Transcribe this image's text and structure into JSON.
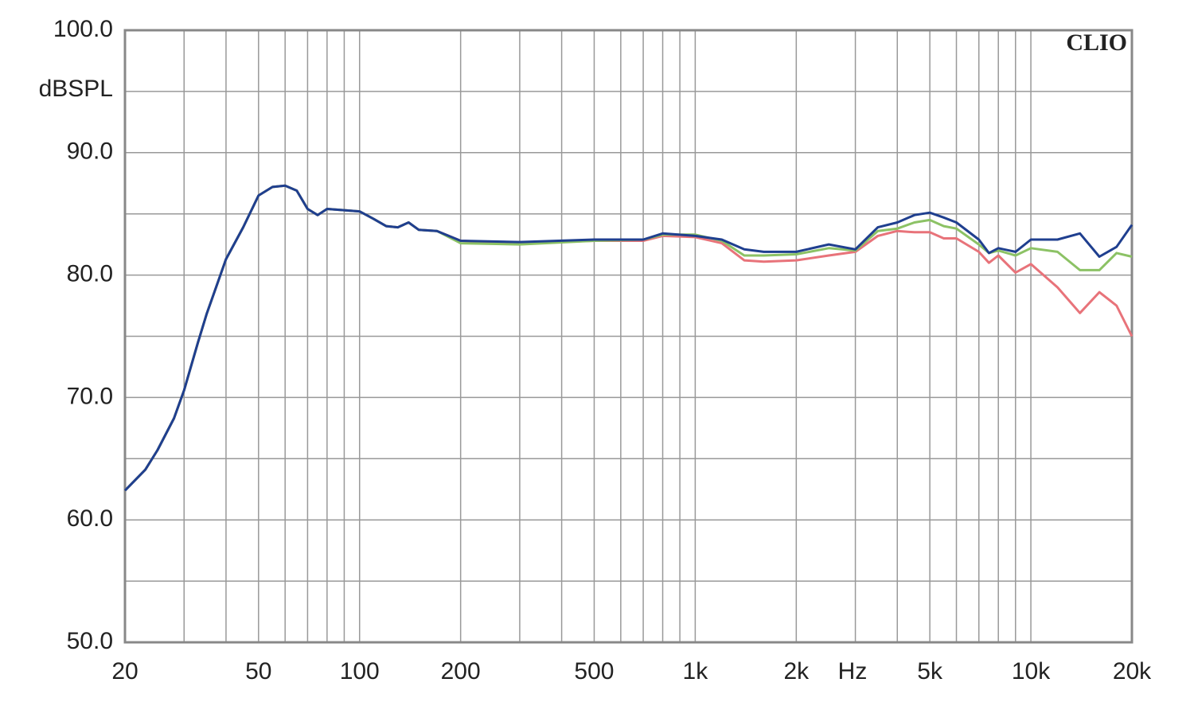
{
  "chart_data": {
    "type": "line",
    "xscale": "log",
    "grid": true,
    "ylabel": "dBSPL",
    "xlabel": "Hz",
    "watermark": "CLIO",
    "xlim": [
      20,
      20000
    ],
    "ylim": [
      50,
      100
    ],
    "xticks": [
      20,
      50,
      100,
      200,
      500,
      {
        "value": 1000,
        "label": "1k"
      },
      {
        "value": 2000,
        "label": "2k"
      },
      {
        "value": 5000,
        "label": "5k"
      },
      {
        "value": 10000,
        "label": "10k"
      },
      {
        "value": 20000,
        "label": "20k"
      }
    ],
    "yticks": [
      {
        "value": 50,
        "label": "50.0"
      },
      {
        "value": 60,
        "label": "60.0"
      },
      {
        "value": 70,
        "label": "70.0"
      },
      {
        "value": 80,
        "label": "80.0"
      },
      {
        "value": 90,
        "label": "90.0"
      },
      {
        "value": 100,
        "label": "100.0"
      }
    ],
    "x_minor_grid": [
      30,
      40,
      60,
      70,
      80,
      90,
      300,
      400,
      600,
      700,
      800,
      900,
      3000,
      4000,
      6000,
      7000,
      8000,
      9000
    ],
    "y_minor_grid": [
      55,
      65,
      75,
      85,
      95
    ],
    "x": [
      20,
      23,
      25,
      28,
      30,
      33,
      35,
      40,
      45,
      50,
      55,
      60,
      65,
      70,
      75,
      80,
      90,
      100,
      110,
      120,
      130,
      140,
      150,
      170,
      200,
      300,
      500,
      700,
      800,
      1000,
      1200,
      1400,
      1600,
      2000,
      2500,
      3000,
      3500,
      4000,
      4500,
      5000,
      5500,
      6000,
      7000,
      7500,
      8000,
      9000,
      10000,
      12000,
      14000,
      16000,
      18000,
      20000
    ],
    "series": [
      {
        "color": "#e8737a",
        "values": [
          62.4,
          64.1,
          65.7,
          68.3,
          70.6,
          74.5,
          76.8,
          81.3,
          83.9,
          86.5,
          87.2,
          87.3,
          86.9,
          85.4,
          84.9,
          85.4,
          85.3,
          85.2,
          84.6,
          84.0,
          83.9,
          84.3,
          83.7,
          83.6,
          82.8,
          82.6,
          82.8,
          82.8,
          83.2,
          83.1,
          82.6,
          81.2,
          81.1,
          81.2,
          81.6,
          81.9,
          83.2,
          83.6,
          83.5,
          83.5,
          83.0,
          83.0,
          81.9,
          81.0,
          81.6,
          80.2,
          80.9,
          79.0,
          76.9,
          78.6,
          77.5,
          75.0
        ]
      },
      {
        "color": "#8cc265",
        "values": [
          62.4,
          64.1,
          65.7,
          68.3,
          70.6,
          74.5,
          76.8,
          81.3,
          83.9,
          86.5,
          87.2,
          87.3,
          86.9,
          85.4,
          84.9,
          85.4,
          85.3,
          85.2,
          84.6,
          84.0,
          83.9,
          84.3,
          83.7,
          83.6,
          82.6,
          82.5,
          82.8,
          82.9,
          83.3,
          83.3,
          82.8,
          81.6,
          81.6,
          81.7,
          82.2,
          82.0,
          83.6,
          83.8,
          84.3,
          84.5,
          84.0,
          83.8,
          82.5,
          81.8,
          82.0,
          81.6,
          82.2,
          81.9,
          80.4,
          80.4,
          81.8,
          81.5
        ]
      },
      {
        "color": "#1f3f8f",
        "values": [
          62.4,
          64.1,
          65.7,
          68.3,
          70.6,
          74.5,
          76.8,
          81.3,
          83.9,
          86.5,
          87.2,
          87.3,
          86.9,
          85.4,
          84.9,
          85.4,
          85.3,
          85.2,
          84.6,
          84.0,
          83.9,
          84.3,
          83.7,
          83.6,
          82.8,
          82.7,
          82.9,
          82.9,
          83.4,
          83.2,
          82.9,
          82.1,
          81.9,
          81.9,
          82.5,
          82.1,
          83.9,
          84.3,
          84.9,
          85.1,
          84.7,
          84.3,
          82.9,
          81.8,
          82.2,
          81.9,
          82.9,
          82.9,
          83.4,
          81.5,
          82.3,
          84.1
        ]
      }
    ]
  }
}
